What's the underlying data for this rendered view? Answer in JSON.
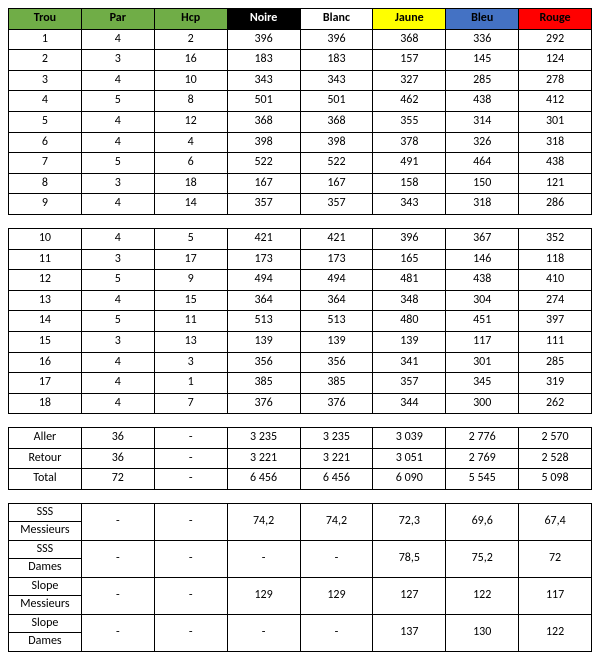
{
  "headers": {
    "cols": [
      {
        "label": "Trou",
        "bg": "#70ad47",
        "fg": "#000000"
      },
      {
        "label": "Par",
        "bg": "#70ad47",
        "fg": "#000000"
      },
      {
        "label": "Hcp",
        "bg": "#70ad47",
        "fg": "#000000"
      },
      {
        "label": "Noire",
        "bg": "#000000",
        "fg": "#ffffff"
      },
      {
        "label": "Blanc",
        "bg": "#ffffff",
        "fg": "#000000"
      },
      {
        "label": "Jaune",
        "bg": "#ffff00",
        "fg": "#000000"
      },
      {
        "label": "Bleu",
        "bg": "#4472c4",
        "fg": "#000000"
      },
      {
        "label": "Rouge",
        "bg": "#ff0000",
        "fg": "#000000"
      }
    ]
  },
  "front9": [
    [
      "1",
      "4",
      "2",
      "396",
      "396",
      "368",
      "336",
      "292"
    ],
    [
      "2",
      "3",
      "16",
      "183",
      "183",
      "157",
      "145",
      "124"
    ],
    [
      "3",
      "4",
      "10",
      "343",
      "343",
      "327",
      "285",
      "278"
    ],
    [
      "4",
      "5",
      "8",
      "501",
      "501",
      "462",
      "438",
      "412"
    ],
    [
      "5",
      "4",
      "12",
      "368",
      "368",
      "355",
      "314",
      "301"
    ],
    [
      "6",
      "4",
      "4",
      "398",
      "398",
      "378",
      "326",
      "318"
    ],
    [
      "7",
      "5",
      "6",
      "522",
      "522",
      "491",
      "464",
      "438"
    ],
    [
      "8",
      "3",
      "18",
      "167",
      "167",
      "158",
      "150",
      "121"
    ],
    [
      "9",
      "4",
      "14",
      "357",
      "357",
      "343",
      "318",
      "286"
    ]
  ],
  "back9": [
    [
      "10",
      "4",
      "5",
      "421",
      "421",
      "396",
      "367",
      "352"
    ],
    [
      "11",
      "3",
      "17",
      "173",
      "173",
      "165",
      "146",
      "118"
    ],
    [
      "12",
      "5",
      "9",
      "494",
      "494",
      "481",
      "438",
      "410"
    ],
    [
      "13",
      "4",
      "15",
      "364",
      "364",
      "348",
      "304",
      "274"
    ],
    [
      "14",
      "5",
      "11",
      "513",
      "513",
      "480",
      "451",
      "397"
    ],
    [
      "15",
      "3",
      "13",
      "139",
      "139",
      "139",
      "117",
      "111"
    ],
    [
      "16",
      "4",
      "3",
      "356",
      "356",
      "341",
      "301",
      "285"
    ],
    [
      "17",
      "4",
      "1",
      "385",
      "385",
      "357",
      "345",
      "319"
    ],
    [
      "18",
      "4",
      "7",
      "376",
      "376",
      "344",
      "300",
      "262"
    ]
  ],
  "totals": [
    [
      "Aller",
      "36",
      "-",
      "3 235",
      "3 235",
      "3 039",
      "2 776",
      "2 570"
    ],
    [
      "Retour",
      "36",
      "-",
      "3 221",
      "3 221",
      "3 051",
      "2 769",
      "2 528"
    ],
    [
      "Total",
      "72",
      "-",
      "6 456",
      "6 456",
      "6 090",
      "5 545",
      "5 098"
    ]
  ],
  "ratings": [
    {
      "l1": "SSS",
      "l2": "Messieurs",
      "par": "-",
      "hcp": "-",
      "vals": [
        "74,2",
        "74,2",
        "72,3",
        "69,6",
        "67,4"
      ]
    },
    {
      "l1": "SSS",
      "l2": "Dames",
      "par": "-",
      "hcp": "-",
      "vals": [
        "-",
        "-",
        "78,5",
        "75,2",
        "72"
      ]
    },
    {
      "l1": "Slope",
      "l2": "Messieurs",
      "par": "-",
      "hcp": "-",
      "vals": [
        "129",
        "129",
        "127",
        "122",
        "117"
      ]
    },
    {
      "l1": "Slope",
      "l2": "Dames",
      "par": "-",
      "hcp": "-",
      "vals": [
        "-",
        "-",
        "137",
        "130",
        "122"
      ]
    }
  ]
}
